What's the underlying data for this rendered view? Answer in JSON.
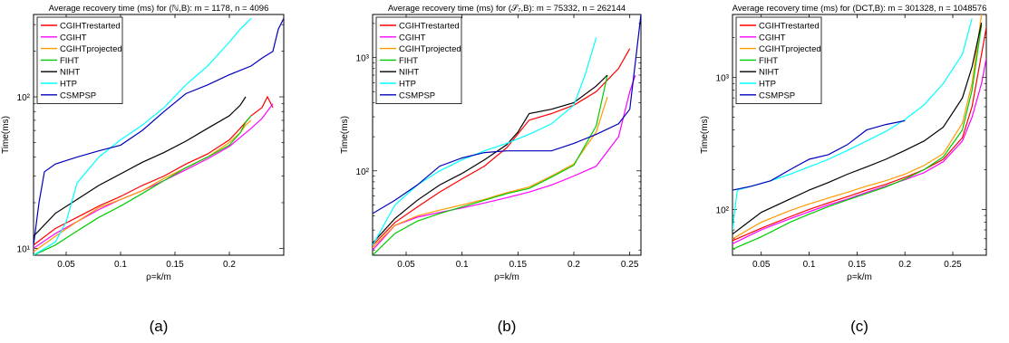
{
  "chart_data": [
    {
      "type": "line",
      "title": "Average recovery time (ms) for (ℕ,B): m = 1178, n = 4096",
      "xlabel": "ρ=k/m",
      "ylabel": "Time(ms)",
      "caption": "(a)",
      "xscale": "linear",
      "yscale": "log",
      "xlim": [
        0.02,
        0.25
      ],
      "ylim": [
        9,
        350
      ],
      "xticks": [
        0.05,
        0.1,
        0.15,
        0.2
      ],
      "xtick_labels": [
        "0.05",
        "0.1",
        "0.15",
        "0.2"
      ],
      "yticks": [
        10,
        100
      ],
      "ytick_labels": [
        "10¹",
        "10²"
      ],
      "legend": "top-left",
      "series": [
        {
          "name": "CGIHTrestarted",
          "color": "#ff0000",
          "x": [
            0.02,
            0.04,
            0.06,
            0.08,
            0.1,
            0.12,
            0.14,
            0.16,
            0.18,
            0.2,
            0.21,
            0.22,
            0.23,
            0.235,
            0.24
          ],
          "y": [
            10.5,
            13.5,
            16,
            19,
            22,
            26,
            30,
            36,
            42,
            52,
            62,
            75,
            85,
            100,
            85
          ]
        },
        {
          "name": "CGIHT",
          "color": "#ff00ff",
          "x": [
            0.02,
            0.04,
            0.06,
            0.08,
            0.1,
            0.12,
            0.14,
            0.16,
            0.18,
            0.2,
            0.21,
            0.22,
            0.23,
            0.24
          ],
          "y": [
            10,
            12.5,
            15,
            18,
            21,
            24,
            28,
            33,
            39,
            47,
            54,
            62,
            72,
            90
          ]
        },
        {
          "name": "CGIHTprojected",
          "color": "#ff9900",
          "x": [
            0.02,
            0.04,
            0.06,
            0.08,
            0.1,
            0.12,
            0.14,
            0.16,
            0.18,
            0.2,
            0.21,
            0.215,
            0.22
          ],
          "y": [
            9.5,
            12,
            15,
            18.5,
            21,
            24,
            29,
            34,
            40,
            50,
            58,
            65,
            70
          ]
        },
        {
          "name": "FIHT",
          "color": "#00cc00",
          "x": [
            0.02,
            0.04,
            0.06,
            0.08,
            0.1,
            0.12,
            0.14,
            0.16,
            0.18,
            0.2,
            0.21,
            0.215,
            0.22
          ],
          "y": [
            9,
            10.5,
            13,
            16,
            19,
            23,
            28,
            34,
            40,
            48,
            58,
            68,
            75
          ]
        },
        {
          "name": "NIHT",
          "color": "#000000",
          "x": [
            0.02,
            0.04,
            0.06,
            0.08,
            0.1,
            0.12,
            0.14,
            0.16,
            0.18,
            0.2,
            0.21,
            0.215
          ],
          "y": [
            12,
            17,
            21,
            26,
            31,
            37,
            43,
            51,
            62,
            75,
            88,
            100
          ]
        },
        {
          "name": "HTP",
          "color": "#00ffff",
          "x": [
            0.02,
            0.04,
            0.05,
            0.06,
            0.08,
            0.1,
            0.12,
            0.14,
            0.16,
            0.18,
            0.2,
            0.21,
            0.22
          ],
          "y": [
            9,
            11,
            15,
            27,
            40,
            52,
            65,
            85,
            120,
            160,
            230,
            280,
            330
          ]
        },
        {
          "name": "CSMPSP",
          "color": "#0000bb",
          "x": [
            0.02,
            0.025,
            0.03,
            0.04,
            0.06,
            0.08,
            0.1,
            0.12,
            0.14,
            0.16,
            0.18,
            0.2,
            0.22,
            0.23,
            0.24,
            0.245,
            0.25
          ],
          "y": [
            10.5,
            20,
            32,
            36,
            40,
            44,
            48,
            60,
            80,
            105,
            120,
            140,
            160,
            180,
            200,
            280,
            330
          ]
        }
      ]
    },
    {
      "type": "line",
      "title": "Average recovery time (ms) for (𝒮₇,B): m = 75332, n = 262144",
      "xlabel": "ρ=k/m",
      "ylabel": "Time(ms)",
      "caption": "(b)",
      "xscale": "linear",
      "yscale": "log",
      "xlim": [
        0.02,
        0.26
      ],
      "ylim": [
        18,
        2400
      ],
      "xticks": [
        0.05,
        0.1,
        0.15,
        0.2,
        0.25
      ],
      "xtick_labels": [
        "0.05",
        "0.1",
        "0.15",
        "0.2",
        "0.25"
      ],
      "yticks": [
        100,
        1000
      ],
      "ytick_labels": [
        "10²",
        "10³"
      ],
      "legend": "top-left",
      "series": [
        {
          "name": "CGIHTrestarted",
          "color": "#ff0000",
          "x": [
            0.02,
            0.04,
            0.06,
            0.08,
            0.1,
            0.12,
            0.14,
            0.16,
            0.18,
            0.2,
            0.22,
            0.24,
            0.25
          ],
          "y": [
            22,
            35,
            48,
            65,
            85,
            110,
            160,
            280,
            320,
            380,
            500,
            800,
            1200
          ]
        },
        {
          "name": "CGIHT",
          "color": "#ff00ff",
          "x": [
            0.02,
            0.04,
            0.06,
            0.08,
            0.1,
            0.12,
            0.14,
            0.16,
            0.18,
            0.2,
            0.22,
            0.24,
            0.25,
            0.255
          ],
          "y": [
            20,
            33,
            39,
            43,
            47,
            52,
            58,
            65,
            75,
            90,
            110,
            200,
            500,
            700
          ]
        },
        {
          "name": "CGIHTprojected",
          "color": "#ff9900",
          "x": [
            0.02,
            0.04,
            0.06,
            0.08,
            0.1,
            0.12,
            0.14,
            0.16,
            0.18,
            0.2,
            0.22,
            0.23
          ],
          "y": [
            21,
            33,
            40,
            45,
            50,
            56,
            64,
            72,
            90,
            115,
            220,
            450
          ]
        },
        {
          "name": "FIHT",
          "color": "#00cc00",
          "x": [
            0.02,
            0.04,
            0.06,
            0.08,
            0.1,
            0.12,
            0.14,
            0.16,
            0.18,
            0.2,
            0.22,
            0.23
          ],
          "y": [
            18,
            28,
            36,
            42,
            48,
            55,
            63,
            70,
            88,
            112,
            250,
            700
          ]
        },
        {
          "name": "NIHT",
          "color": "#000000",
          "x": [
            0.02,
            0.04,
            0.06,
            0.08,
            0.1,
            0.12,
            0.14,
            0.15,
            0.16,
            0.18,
            0.2,
            0.22,
            0.23
          ],
          "y": [
            23,
            38,
            55,
            75,
            95,
            125,
            170,
            220,
            320,
            350,
            400,
            560,
            700
          ]
        },
        {
          "name": "HTP",
          "color": "#00ffff",
          "x": [
            0.02,
            0.04,
            0.06,
            0.08,
            0.1,
            0.12,
            0.14,
            0.16,
            0.18,
            0.2,
            0.21,
            0.22
          ],
          "y": [
            22,
            50,
            75,
            100,
            125,
            150,
            175,
            210,
            260,
            380,
            700,
            1500
          ]
        },
        {
          "name": "CSMPSP",
          "color": "#0000bb",
          "x": [
            0.02,
            0.04,
            0.06,
            0.08,
            0.1,
            0.12,
            0.14,
            0.16,
            0.18,
            0.2,
            0.22,
            0.24,
            0.25,
            0.255,
            0.26
          ],
          "y": [
            42,
            55,
            75,
            110,
            130,
            145,
            150,
            150,
            150,
            175,
            210,
            260,
            350,
            900,
            2400
          ]
        }
      ]
    },
    {
      "type": "line",
      "title": "Average recovery time (ms) for (DCT,B): m = 301328, n = 1048576",
      "xlabel": "ρ=k/m",
      "ylabel": "Time(ms)",
      "caption": "(c)",
      "xscale": "linear",
      "yscale": "log",
      "xlim": [
        0.02,
        0.285
      ],
      "ylim": [
        45,
        3000
      ],
      "xticks": [
        0.05,
        0.1,
        0.15,
        0.2,
        0.25
      ],
      "xtick_labels": [
        "0.05",
        "0.1",
        "0.15",
        "0.2",
        "0.25"
      ],
      "yticks": [
        100,
        1000
      ],
      "ytick_labels": [
        "10²",
        "10³"
      ],
      "legend": "top-left",
      "series": [
        {
          "name": "CGIHTrestarted",
          "color": "#ff0000",
          "x": [
            0.02,
            0.05,
            0.08,
            0.1,
            0.12,
            0.14,
            0.16,
            0.18,
            0.2,
            0.22,
            0.24,
            0.26,
            0.27,
            0.28,
            0.285
          ],
          "y": [
            58,
            72,
            88,
            100,
            112,
            125,
            140,
            155,
            175,
            200,
            240,
            350,
            600,
            1500,
            2400
          ]
        },
        {
          "name": "CGIHT",
          "color": "#ff00ff",
          "x": [
            0.02,
            0.05,
            0.08,
            0.1,
            0.12,
            0.14,
            0.16,
            0.18,
            0.2,
            0.22,
            0.24,
            0.26,
            0.27,
            0.28,
            0.285
          ],
          "y": [
            55,
            70,
            85,
            96,
            108,
            120,
            135,
            150,
            168,
            190,
            230,
            330,
            500,
            900,
            1400
          ]
        },
        {
          "name": "CGIHTprojected",
          "color": "#ff9900",
          "x": [
            0.02,
            0.05,
            0.08,
            0.1,
            0.12,
            0.14,
            0.16,
            0.18,
            0.2,
            0.22,
            0.24,
            0.26,
            0.27,
            0.28
          ],
          "y": [
            60,
            80,
            98,
            110,
            122,
            135,
            150,
            165,
            185,
            215,
            265,
            450,
            900,
            3000
          ]
        },
        {
          "name": "FIHT",
          "color": "#00cc00",
          "x": [
            0.02,
            0.05,
            0.08,
            0.1,
            0.12,
            0.14,
            0.16,
            0.18,
            0.2,
            0.22,
            0.24,
            0.26,
            0.27,
            0.28
          ],
          "y": [
            50,
            62,
            80,
            92,
            105,
            118,
            132,
            148,
            170,
            200,
            250,
            400,
            800,
            2500
          ]
        },
        {
          "name": "NIHT",
          "color": "#000000",
          "x": [
            0.02,
            0.05,
            0.08,
            0.1,
            0.12,
            0.14,
            0.16,
            0.18,
            0.2,
            0.22,
            0.24,
            0.26,
            0.27,
            0.28
          ],
          "y": [
            65,
            95,
            120,
            140,
            160,
            185,
            210,
            240,
            280,
            330,
            420,
            700,
            1200,
            2600
          ]
        },
        {
          "name": "HTP",
          "color": "#00ffff",
          "x": [
            0.02,
            0.025,
            0.04,
            0.06,
            0.08,
            0.1,
            0.12,
            0.14,
            0.16,
            0.18,
            0.2,
            0.22,
            0.24,
            0.26,
            0.27
          ],
          "y": [
            70,
            140,
            150,
            165,
            185,
            210,
            240,
            280,
            330,
            390,
            480,
            620,
            900,
            1500,
            2800
          ]
        },
        {
          "name": "CSMPSP",
          "color": "#0000bb",
          "x": [
            0.02,
            0.04,
            0.06,
            0.08,
            0.1,
            0.12,
            0.14,
            0.16,
            0.18,
            0.2
          ],
          "y": [
            140,
            150,
            165,
            200,
            240,
            260,
            310,
            400,
            440,
            470
          ]
        }
      ]
    }
  ]
}
